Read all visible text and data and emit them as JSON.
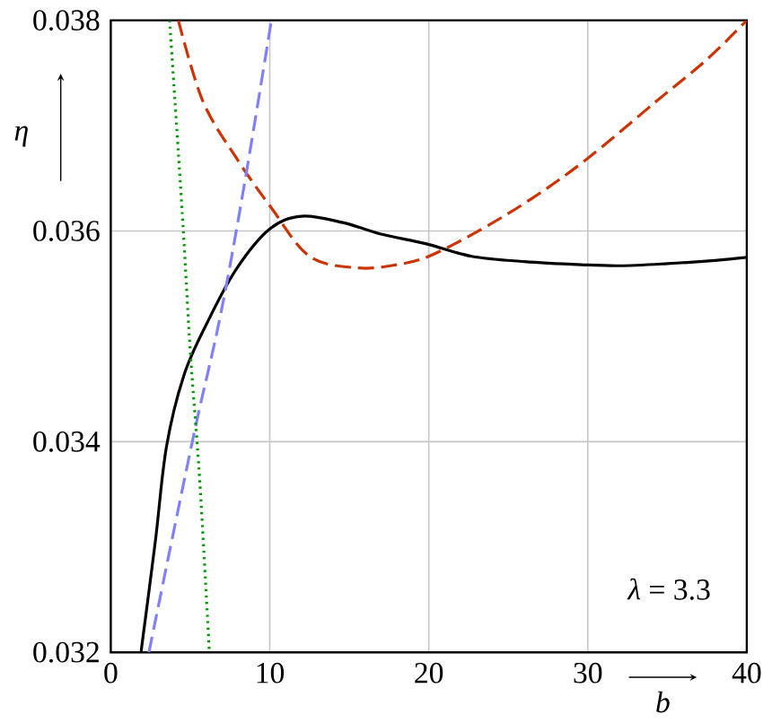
{
  "chart_data": {
    "type": "line",
    "xlabel": "b",
    "ylabel": "η",
    "xlim": [
      0,
      40
    ],
    "ylim": [
      0.032,
      0.038
    ],
    "xticks": [
      0,
      10,
      20,
      30,
      40
    ],
    "yticks": [
      0.032,
      0.034,
      0.036,
      0.038
    ],
    "grid": true,
    "annotations": [
      "*λ* = 3.3"
    ],
    "series": [
      {
        "color": "#000000",
        "line_style": "solid",
        "x": [
          1.9,
          2.8,
          3.5,
          4.6,
          6.1,
          7.9,
          10,
          12,
          14.6,
          17,
          19.8,
          22.7,
          26,
          29.6,
          32,
          35,
          38,
          40
        ],
        "values": [
          0.032,
          0.03305,
          0.03395,
          0.03463,
          0.03514,
          0.03564,
          0.03602,
          0.03614,
          0.03608,
          0.03597,
          0.03588,
          0.03576,
          0.03571,
          0.03568,
          0.03567,
          0.03569,
          0.03572,
          0.03575
        ]
      },
      {
        "color": "#cc3300",
        "line_style": "dashed",
        "x": [
          4.25,
          5.8,
          8.0,
          10.1,
          12.5,
          15.5,
          18,
          20,
          23,
          26.5,
          30,
          34.3,
          37.5,
          40
        ],
        "values": [
          0.038,
          0.03723,
          0.03667,
          0.03622,
          0.03576,
          0.03565,
          0.03568,
          0.03576,
          0.03599,
          0.03631,
          0.03669,
          0.03723,
          0.03763,
          0.038
        ]
      },
      {
        "color": "#8080ff",
        "line_style": "dashed",
        "x": [
          2.4,
          4.0,
          5.4,
          6.9,
          8.4,
          10.1
        ],
        "values": [
          0.032,
          0.03318,
          0.03419,
          0.0352,
          0.03644,
          0.038
        ]
      },
      {
        "color": "#009900",
        "line_style": "dotted",
        "x": [
          3.7,
          4.5,
          5.0,
          5.6,
          6.2
        ],
        "values": [
          0.038,
          0.03616,
          0.03486,
          0.03362,
          0.032
        ]
      }
    ]
  }
}
